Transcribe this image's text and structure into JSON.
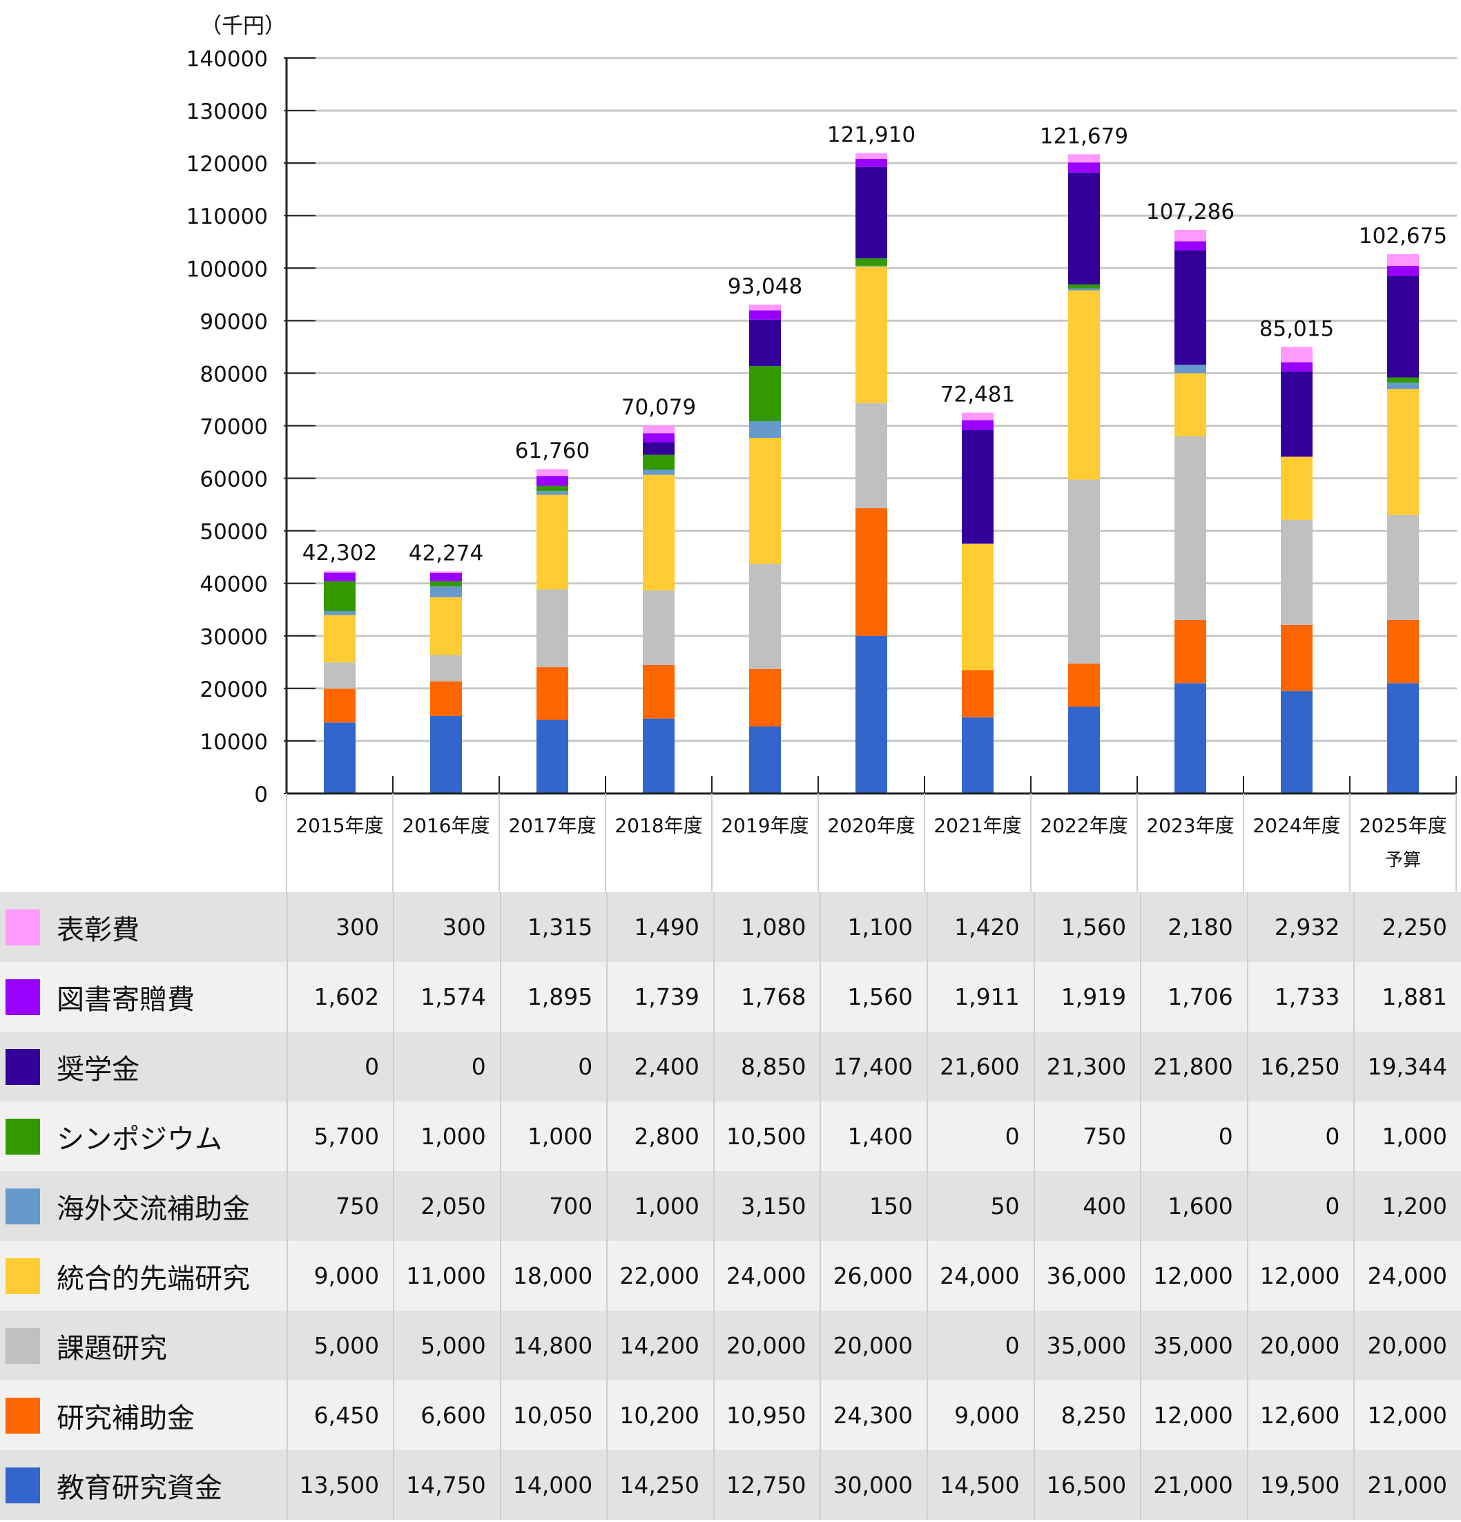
{
  "chart_data": {
    "type": "bar",
    "stacked": true,
    "unit_label": "（千円）",
    "ylim": [
      0,
      140000
    ],
    "y_ticks": [
      0,
      10000,
      20000,
      30000,
      40000,
      50000,
      60000,
      70000,
      80000,
      90000,
      100000,
      110000,
      120000,
      130000,
      140000
    ],
    "y_tick_labels": [
      "0",
      "10000",
      "20000",
      "30000",
      "40000",
      "50000",
      "60000",
      "70000",
      "80000",
      "90000",
      "100000",
      "110000",
      "120000",
      "130000",
      "140000"
    ],
    "grid": true,
    "categories": [
      "2015年度",
      "2016年度",
      "2017年度",
      "2018年度",
      "2019年度",
      "2020年度",
      "2021年度",
      "2022年度",
      "2023年度",
      "2024年度",
      "2025年度"
    ],
    "category_sublabels": [
      "",
      "",
      "",
      "",
      "",
      "",
      "",
      "",
      "",
      "",
      "予算"
    ],
    "totals": [
      42302,
      42274,
      61760,
      70079,
      93048,
      121910,
      72481,
      121679,
      107286,
      85015,
      102675
    ],
    "total_labels": [
      "42,302",
      "42,274",
      "61,760",
      "70,079",
      "93,048",
      "121,910",
      "72,481",
      "121,679",
      "107,286",
      "85,015",
      "102,675"
    ],
    "series": [
      {
        "name": "教育研究資金",
        "color": "#3366cc",
        "values": [
          13500,
          14750,
          14000,
          14250,
          12750,
          30000,
          14500,
          16500,
          21000,
          19500,
          21000
        ]
      },
      {
        "name": "研究補助金",
        "color": "#ff6600",
        "values": [
          6450,
          6600,
          10050,
          10200,
          10950,
          24300,
          9000,
          8250,
          12000,
          12600,
          12000
        ]
      },
      {
        "name": "課題研究",
        "color": "#c0c0c0",
        "values": [
          5000,
          5000,
          14800,
          14200,
          20000,
          20000,
          0,
          35000,
          35000,
          20000,
          20000
        ]
      },
      {
        "name": "統合的先端研究",
        "color": "#ffcc33",
        "values": [
          9000,
          11000,
          18000,
          22000,
          24000,
          26000,
          24000,
          36000,
          12000,
          12000,
          24000
        ]
      },
      {
        "name": "海外交流補助金",
        "color": "#6699cc",
        "values": [
          750,
          2050,
          700,
          1000,
          3150,
          150,
          50,
          400,
          1600,
          0,
          1200
        ]
      },
      {
        "name": "シンポジウム",
        "color": "#339900",
        "values": [
          5700,
          1000,
          1000,
          2800,
          10500,
          1400,
          0,
          750,
          0,
          0,
          1000
        ]
      },
      {
        "name": "奨学金",
        "color": "#330099",
        "values": [
          0,
          0,
          0,
          2400,
          8850,
          17400,
          21600,
          21300,
          21800,
          16250,
          19344
        ]
      },
      {
        "name": "図書寄贈費",
        "color": "#9900ff",
        "values": [
          1602,
          1574,
          1895,
          1739,
          1768,
          1560,
          1911,
          1919,
          1706,
          1733,
          1881
        ]
      },
      {
        "name": "表彰費",
        "color": "#ff99ff",
        "values": [
          300,
          300,
          1315,
          1490,
          1080,
          1100,
          1420,
          1560,
          2180,
          2932,
          2250
        ]
      }
    ]
  },
  "table": {
    "rows": [
      {
        "label": "表彰費",
        "color": "#ff99ff",
        "cells": [
          "300",
          "300",
          "1,315",
          "1,490",
          "1,080",
          "1,100",
          "1,420",
          "1,560",
          "2,180",
          "2,932",
          "2,250"
        ]
      },
      {
        "label": "図書寄贈費",
        "color": "#9900ff",
        "cells": [
          "1,602",
          "1,574",
          "1,895",
          "1,739",
          "1,768",
          "1,560",
          "1,911",
          "1,919",
          "1,706",
          "1,733",
          "1,881"
        ]
      },
      {
        "label": "奨学金",
        "color": "#330099",
        "cells": [
          "0",
          "0",
          "0",
          "2,400",
          "8,850",
          "17,400",
          "21,600",
          "21,300",
          "21,800",
          "16,250",
          "19,344"
        ]
      },
      {
        "label": "シンポジウム",
        "color": "#339900",
        "cells": [
          "5,700",
          "1,000",
          "1,000",
          "2,800",
          "10,500",
          "1,400",
          "0",
          "750",
          "0",
          "0",
          "1,000"
        ]
      },
      {
        "label": "海外交流補助金",
        "color": "#6699cc",
        "cells": [
          "750",
          "2,050",
          "700",
          "1,000",
          "3,150",
          "150",
          "50",
          "400",
          "1,600",
          "0",
          "1,200"
        ]
      },
      {
        "label": "統合的先端研究",
        "color": "#ffcc33",
        "cells": [
          "9,000",
          "11,000",
          "18,000",
          "22,000",
          "24,000",
          "26,000",
          "24,000",
          "36,000",
          "12,000",
          "12,000",
          "24,000"
        ]
      },
      {
        "label": "課題研究",
        "color": "#c0c0c0",
        "cells": [
          "5,000",
          "5,000",
          "14,800",
          "14,200",
          "20,000",
          "20,000",
          "0",
          "35,000",
          "35,000",
          "20,000",
          "20,000"
        ]
      },
      {
        "label": "研究補助金",
        "color": "#ff6600",
        "cells": [
          "6,450",
          "6,600",
          "10,050",
          "10,200",
          "10,950",
          "24,300",
          "9,000",
          "8,250",
          "12,000",
          "12,600",
          "12,000"
        ]
      },
      {
        "label": "教育研究資金",
        "color": "#3366cc",
        "cells": [
          "13,500",
          "14,750",
          "14,000",
          "14,250",
          "12,750",
          "30,000",
          "14,500",
          "16,500",
          "21,000",
          "19,500",
          "21,000"
        ]
      }
    ]
  }
}
